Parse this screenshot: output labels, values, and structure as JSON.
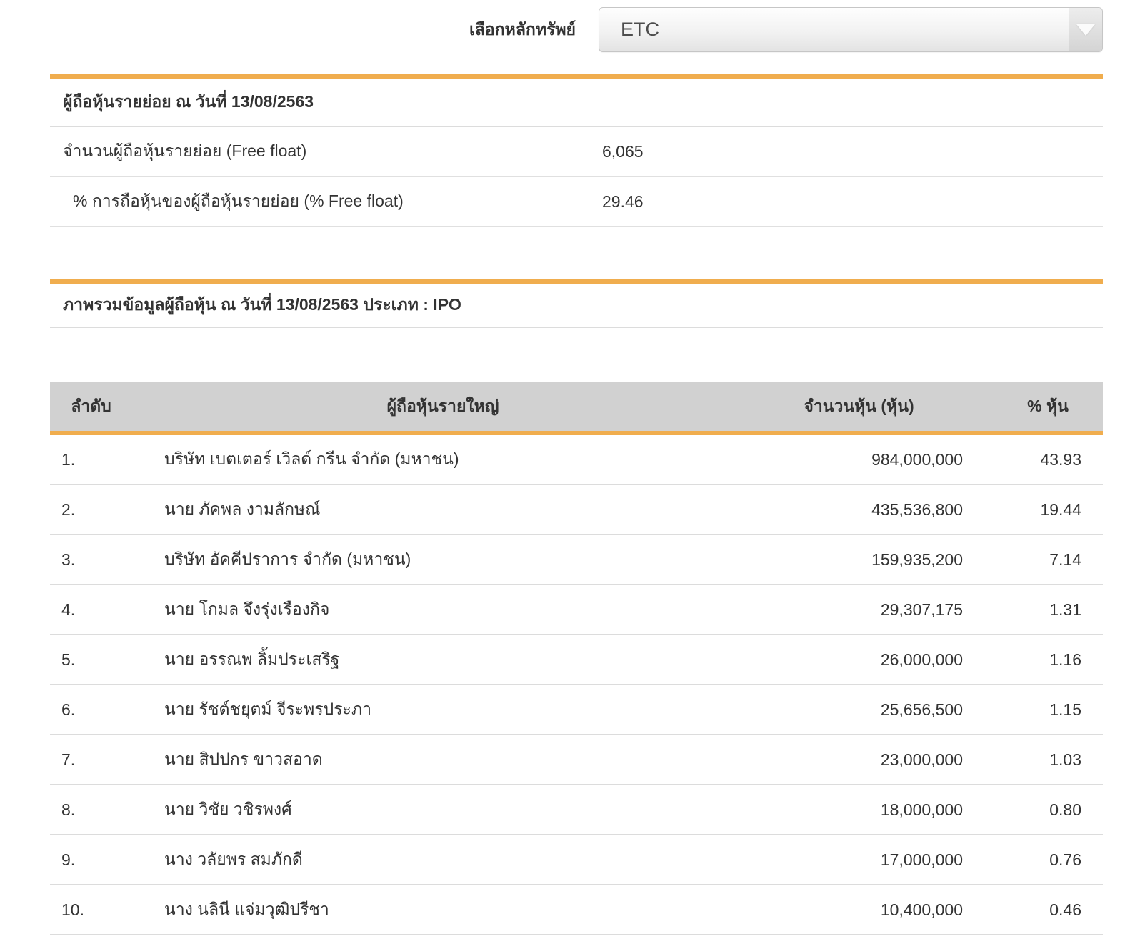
{
  "security_selector": {
    "label": "เลือกหลักทรัพย์",
    "selected": "ETC"
  },
  "minor_shareholders": {
    "title": "ผู้ถือหุ้นรายย่อย ณ วันที่ 13/08/2563",
    "rows": [
      {
        "label": "จำนวนผู้ถือหุ้นรายย่อย (Free float)",
        "value": "6,065"
      },
      {
        "label": "% การถือหุ้นของผู้ถือหุ้นรายย่อย (% Free float)",
        "value": "29.46"
      }
    ]
  },
  "overview": {
    "title": "ภาพรวมข้อมูลผู้ถือหุ้น ณ วันที่ 13/08/2563 ประเภท : IPO"
  },
  "holders_table": {
    "headers": {
      "rank": "ลำดับ",
      "name": "ผู้ถือหุ้นรายใหญ่",
      "shares": "จำนวนหุ้น (หุ้น)",
      "percent": "% หุ้น"
    },
    "rows": [
      {
        "rank": "1.",
        "name": "บริษัท เบตเตอร์ เวิลด์ กรีน จำกัด (มหาชน)",
        "shares": "984,000,000",
        "percent": "43.93"
      },
      {
        "rank": "2.",
        "name": "นาย ภัคพล งามลักษณ์",
        "shares": "435,536,800",
        "percent": "19.44"
      },
      {
        "rank": "3.",
        "name": "บริษัท อัคคีปราการ จำกัด (มหาชน)",
        "shares": "159,935,200",
        "percent": "7.14"
      },
      {
        "rank": "4.",
        "name": "นาย โกมล จึงรุ่งเรืองกิจ",
        "shares": "29,307,175",
        "percent": "1.31"
      },
      {
        "rank": "5.",
        "name": "นาย อรรณพ ลิ้มประเสริฐ",
        "shares": "26,000,000",
        "percent": "1.16"
      },
      {
        "rank": "6.",
        "name": "นาย รัชต์ชยุตม์ จีระพรประภา",
        "shares": "25,656,500",
        "percent": "1.15"
      },
      {
        "rank": "7.",
        "name": "นาย สิปปกร ขาวสอาด",
        "shares": "23,000,000",
        "percent": "1.03"
      },
      {
        "rank": "8.",
        "name": "นาย วิชัย วชิรพงศ์",
        "shares": "18,000,000",
        "percent": "0.80"
      },
      {
        "rank": "9.",
        "name": "นาง วลัยพร สมภักดี",
        "shares": "17,000,000",
        "percent": "0.76"
      },
      {
        "rank": "10.",
        "name": "นาง นลินี แจ่มวุฒิปรีชา",
        "shares": "10,400,000",
        "percent": "0.46"
      }
    ]
  },
  "colors": {
    "accent_orange": "#F0AD4E",
    "table_header_gray": "#D1D1D1",
    "separator_gray": "#DCDCDC",
    "text": "#333333"
  }
}
